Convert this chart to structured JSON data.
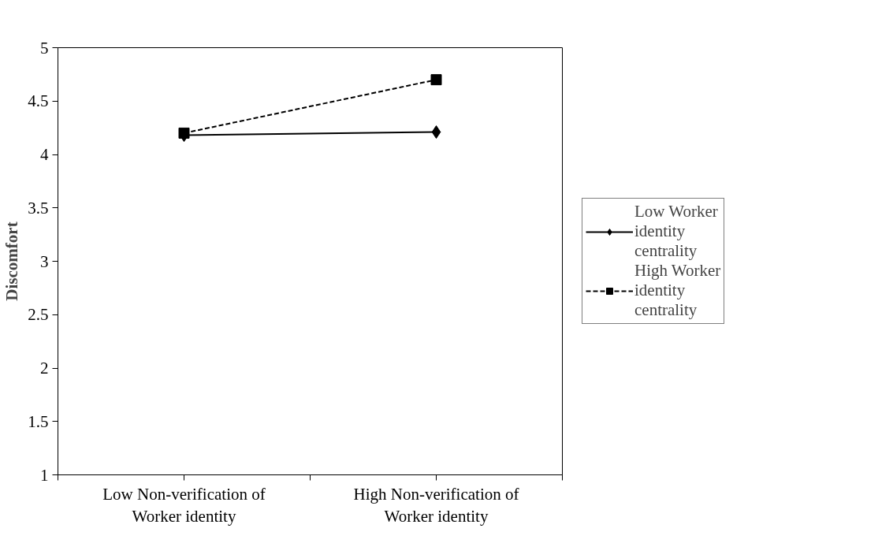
{
  "chart_data": {
    "type": "line",
    "ylabel": "Discomfort",
    "categories": [
      "Low Non-verification of Worker identity",
      "High Non-verification of Worker identity"
    ],
    "series": [
      {
        "name": "Low Worker identity centrality",
        "color": "#000000",
        "values": [
          4.18,
          4.21
        ],
        "marker": "diamond",
        "line_style": "solid"
      },
      {
        "name": "High Worker identity centrality",
        "color": "#000000",
        "values": [
          4.2,
          4.7
        ],
        "marker": "square",
        "line_style": "dashed"
      }
    ],
    "ylim": [
      1,
      5
    ],
    "yticks": [
      1,
      1.5,
      2,
      2.5,
      3,
      3.5,
      4,
      4.5,
      5
    ],
    "grid": false,
    "legend": "right"
  }
}
